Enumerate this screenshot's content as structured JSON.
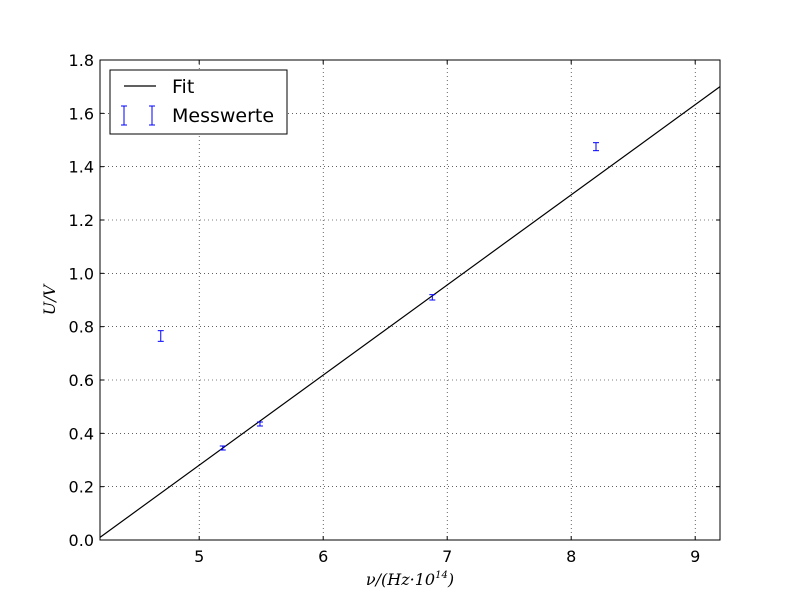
{
  "chart_data": {
    "type": "scatter",
    "title": "",
    "xlabel": "ν/(Hz·10",
    "xlabel_exponent": "14",
    "xlabel_close": ")",
    "ylabel": "U/V",
    "xlim": [
      4.2,
      9.2
    ],
    "ylim": [
      0.0,
      1.8
    ],
    "xticks": [
      5,
      6,
      7,
      8,
      9
    ],
    "yticks": [
      0.0,
      0.2,
      0.4,
      0.6,
      0.8,
      1.0,
      1.2,
      1.4,
      1.6,
      1.8
    ],
    "xtick_labels": [
      "5",
      "6",
      "7",
      "8",
      "9"
    ],
    "ytick_labels": [
      "0.0",
      "0.2",
      "0.4",
      "0.6",
      "0.8",
      "1.0",
      "1.2",
      "1.4",
      "1.6",
      "1.8"
    ],
    "grid": true,
    "legend_position": "top-left",
    "series": [
      {
        "name": "Fit",
        "kind": "line",
        "color": "#000000",
        "x": [
          4.2,
          9.2
        ],
        "y": [
          0.01,
          1.7
        ]
      },
      {
        "name": "Messwerte",
        "kind": "errorbar",
        "color": "#0000ff",
        "x": [
          4.69,
          5.19,
          5.49,
          6.88,
          8.2
        ],
        "y": [
          0.765,
          0.345,
          0.435,
          0.91,
          1.475
        ],
        "yerr": [
          0.02,
          0.006,
          0.006,
          0.01,
          0.015
        ]
      }
    ]
  }
}
